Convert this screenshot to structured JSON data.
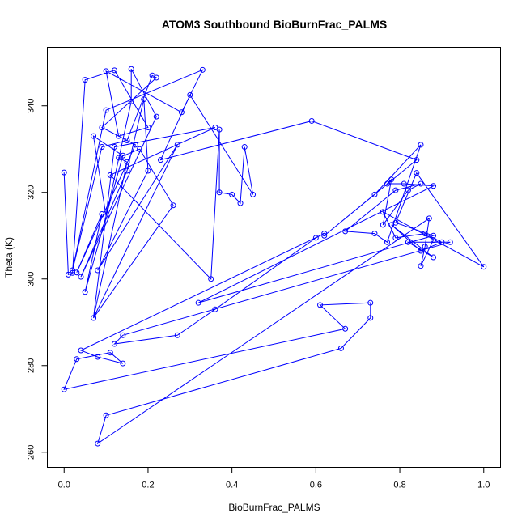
{
  "chart_data": {
    "type": "line",
    "title": "ATOM3 Southbound BioBurnFrac_PALMS",
    "xlabel": "BioBurnFrac_PALMS",
    "ylabel": "Theta (K)",
    "xlim": [
      -0.04,
      1.04
    ],
    "ylim": [
      256.5,
      353.5
    ],
    "x_ticks": [
      0.0,
      0.2,
      0.4,
      0.6,
      0.8,
      1.0
    ],
    "x_tick_labels": [
      "0.0",
      "0.2",
      "0.4",
      "0.6",
      "0.8",
      "1.0"
    ],
    "y_ticks": [
      260,
      280,
      300,
      320,
      340
    ],
    "y_tick_labels": [
      "260",
      "280",
      "300",
      "320",
      "340"
    ],
    "grid": false,
    "legend": "none",
    "line_color": "#0000ff",
    "marker": "open-circle",
    "x": [
      0.0,
      0.01,
      0.02,
      0.05,
      0.12,
      0.2,
      0.13,
      0.1,
      0.28,
      0.33,
      0.1,
      0.02,
      0.09,
      0.15,
      0.21,
      0.22,
      0.09,
      0.17,
      0.03,
      0.09,
      0.05,
      0.14,
      0.07,
      0.1,
      0.16,
      0.16,
      0.22,
      0.04,
      0.15,
      0.19,
      0.2,
      0.08,
      0.27,
      0.07,
      0.26,
      0.18,
      0.13,
      0.15,
      0.07,
      0.12,
      0.36,
      0.11,
      0.35,
      0.37,
      0.37,
      0.4,
      0.42,
      0.43,
      0.45,
      0.3,
      0.23,
      0.59,
      0.84,
      0.62,
      0.74,
      0.85,
      0.77,
      0.74,
      0.67,
      0.79,
      0.85,
      0.82,
      0.76,
      0.78,
      0.77,
      0.81,
      0.88,
      0.32,
      0.88,
      0.79,
      0.84,
      1.0,
      0.76,
      0.79,
      0.86,
      0.9,
      0.85,
      0.78,
      0.88,
      0.82,
      0.92,
      0.14,
      0.12,
      0.27,
      0.36,
      0.6,
      0.62,
      0.04,
      0.08,
      0.14,
      0.11,
      0.03,
      0.0,
      0.67,
      0.61,
      0.73,
      0.73,
      0.66,
      0.1,
      0.08,
      0.87,
      0.86,
      0.85,
      0.88
    ],
    "y": [
      324.6,
      301.0,
      301.4,
      346.0,
      348.2,
      335.0,
      333.0,
      348.0,
      338.5,
      348.3,
      339.0,
      302.0,
      330.5,
      332.0,
      347.0,
      346.5,
      335.0,
      331.0,
      301.5,
      315.0,
      297.0,
      328.5,
      333.0,
      314.5,
      341.0,
      348.5,
      337.5,
      300.5,
      325.0,
      341.5,
      325.0,
      302.0,
      331.0,
      291.0,
      317.0,
      330.0,
      328.0,
      327.0,
      291.0,
      330.5,
      335.0,
      324.0,
      300.0,
      334.5,
      320.0,
      319.5,
      317.5,
      330.5,
      319.5,
      342.5,
      327.5,
      336.5,
      327.5,
      310.0,
      319.5,
      331.0,
      308.5,
      310.5,
      311.0,
      320.5,
      322.0,
      320.5,
      312.5,
      323.0,
      322.0,
      322.0,
      321.5,
      294.5,
      310.0,
      313.0,
      324.5,
      302.8,
      315.5,
      309.5,
      310.5,
      308.5,
      306.5,
      312.5,
      305.0,
      308.5,
      308.5,
      287.0,
      285.0,
      287.0,
      293.0,
      309.5,
      310.5,
      283.5,
      282.0,
      280.5,
      283.0,
      281.5,
      274.5,
      288.5,
      294.0,
      294.5,
      291.0,
      284.0,
      268.5,
      262.0,
      314.0,
      307.5,
      303.0,
      309.0
    ]
  }
}
